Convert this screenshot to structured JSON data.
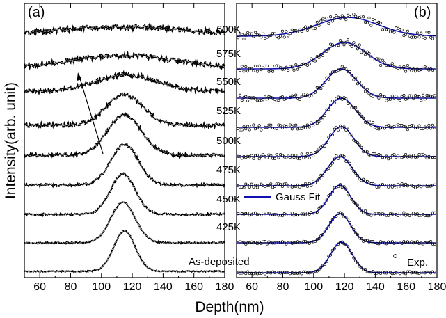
{
  "chart_data": [
    {
      "type": "line",
      "panel": "(a)",
      "xlabel": "Depth(nm)",
      "ylabel": "Intensity(arb. unit)",
      "xlim": [
        50,
        180
      ],
      "xticks": [
        60,
        80,
        100,
        120,
        140,
        160,
        180
      ],
      "y_ticks_labeled": false,
      "stacked_offset": true,
      "annotation": "arrow pointing up-left indicating increasing annealing temperature",
      "series": [
        {
          "label": "As-deposited",
          "peak_nm": 115,
          "sigma_nm": 7,
          "amplitude": 1.0
        },
        {
          "label": "425K",
          "peak_nm": 114,
          "sigma_nm": 8,
          "amplitude": 1.0
        },
        {
          "label": "450K",
          "peak_nm": 114,
          "sigma_nm": 8,
          "amplitude": 1.0
        },
        {
          "label": "475K",
          "peak_nm": 115,
          "sigma_nm": 9,
          "amplitude": 1.0
        },
        {
          "label": "500K",
          "peak_nm": 115,
          "sigma_nm": 11,
          "amplitude": 1.0
        },
        {
          "label": "525K",
          "peak_nm": 115,
          "sigma_nm": 12,
          "amplitude": 0.75
        },
        {
          "label": "550K",
          "peak_nm": 116,
          "sigma_nm": 20,
          "amplitude": 0.4
        },
        {
          "label": "575K",
          "peak_nm": 114,
          "sigma_nm": 32,
          "amplitude": 0.3
        },
        {
          "label": "600K",
          "peak_nm": 115,
          "sigma_nm": 48,
          "amplitude": 0.22
        }
      ]
    },
    {
      "type": "scatter",
      "panel": "(b)",
      "xlabel": "Depth(nm)",
      "xlim": [
        50,
        180
      ],
      "xticks": [
        60,
        80,
        100,
        120,
        140,
        160,
        180
      ],
      "legend": [
        "Gauss Fit",
        "Exp."
      ],
      "stacked_offset": true,
      "series": [
        {
          "label": "As-deposited",
          "center_nm": 118,
          "sigma_nm": 7,
          "amplitude": 1.0
        },
        {
          "label": "425K",
          "center_nm": 117,
          "sigma_nm": 7,
          "amplitude": 1.0
        },
        {
          "label": "450K",
          "center_nm": 117,
          "sigma_nm": 7,
          "amplitude": 1.0
        },
        {
          "label": "475K",
          "center_nm": 117,
          "sigma_nm": 8,
          "amplitude": 1.0
        },
        {
          "label": "500K",
          "center_nm": 118,
          "sigma_nm": 8,
          "amplitude": 1.0
        },
        {
          "label": "525K",
          "center_nm": 118,
          "sigma_nm": 9,
          "amplitude": 1.0
        },
        {
          "label": "550K",
          "center_nm": 118,
          "sigma_nm": 10,
          "amplitude": 1.0
        },
        {
          "label": "575K",
          "center_nm": 120,
          "sigma_nm": 14,
          "amplitude": 1.0
        },
        {
          "label": "600K",
          "center_nm": 122,
          "sigma_nm": 20,
          "amplitude": 0.9
        }
      ]
    }
  ],
  "labels": {
    "panel_a": "(a)",
    "panel_b": "(b)",
    "xlabel": "Depth(nm)",
    "ylabel": "Intensity(arb. unit)",
    "as_deposited": "As-deposited",
    "legend_fit": "Gauss Fit",
    "legend_exp": "Exp."
  },
  "colors": {
    "fit_line": "#1010b0",
    "data_a": "#000000",
    "data_b_marker": "#000000"
  }
}
